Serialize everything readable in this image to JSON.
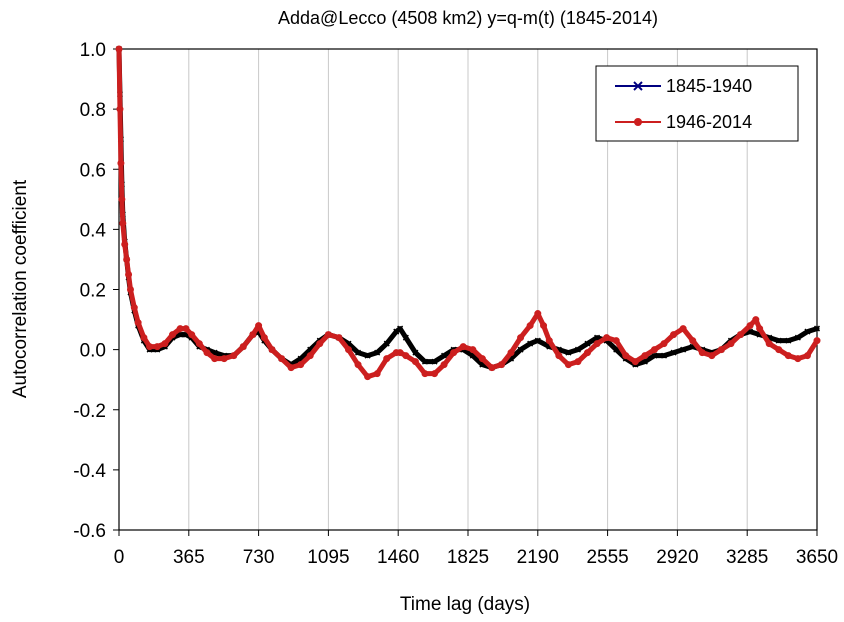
{
  "chart_data": {
    "type": "line",
    "title": "Adda@Lecco (4508 km2) y=q-m(t) (1845-2014)",
    "xlabel": "Time lag (days)",
    "ylabel": "Autocorrelation coefficient",
    "xlim": [
      0,
      3650
    ],
    "ylim": [
      -0.6,
      1.0
    ],
    "x_ticks": [
      0,
      365,
      730,
      1095,
      1460,
      1825,
      2190,
      2555,
      2920,
      3285,
      3650
    ],
    "y_ticks": [
      1.0,
      0.8,
      0.6,
      0.4,
      0.2,
      0.0,
      -0.2,
      -0.4,
      -0.6
    ],
    "x_tick_labels": [
      "0",
      "365",
      "730",
      "1095",
      "1460",
      "1825",
      "2190",
      "2555",
      "2920",
      "3285",
      "3650"
    ],
    "y_tick_labels": [
      "1.0",
      "0.8",
      "0.6",
      "0.4",
      "0.2",
      "0.0",
      "-0.2",
      "-0.4",
      "-0.6"
    ],
    "grid": {
      "vertical": true,
      "horizontal": false
    },
    "legend_position": "top-right",
    "series": [
      {
        "name": "1845-1940",
        "color": "#000000",
        "legend_color": "#000080",
        "marker": "x",
        "x": [
          0,
          5,
          10,
          15,
          20,
          30,
          40,
          50,
          60,
          80,
          100,
          130,
          160,
          200,
          240,
          280,
          320,
          350,
          380,
          420,
          460,
          500,
          550,
          600,
          650,
          700,
          730,
          760,
          800,
          850,
          900,
          950,
          1000,
          1050,
          1095,
          1150,
          1200,
          1250,
          1300,
          1350,
          1400,
          1450,
          1470,
          1500,
          1550,
          1600,
          1650,
          1700,
          1750,
          1800,
          1850,
          1900,
          1950,
          2000,
          2050,
          2100,
          2150,
          2190,
          2250,
          2300,
          2350,
          2400,
          2450,
          2500,
          2550,
          2600,
          2650,
          2700,
          2750,
          2800,
          2850,
          2900,
          2950,
          3000,
          3050,
          3100,
          3150,
          3200,
          3250,
          3300,
          3350,
          3400,
          3450,
          3500,
          3550,
          3600,
          3650
        ],
        "y": [
          1.0,
          0.85,
          0.7,
          0.55,
          0.45,
          0.36,
          0.3,
          0.24,
          0.19,
          0.13,
          0.08,
          0.03,
          0.0,
          0.0,
          0.01,
          0.04,
          0.05,
          0.05,
          0.04,
          0.01,
          0.0,
          -0.01,
          -0.02,
          -0.02,
          0.01,
          0.05,
          0.06,
          0.03,
          0.0,
          -0.03,
          -0.05,
          -0.03,
          0.0,
          0.03,
          0.05,
          0.04,
          0.02,
          -0.01,
          -0.02,
          -0.01,
          0.02,
          0.06,
          0.07,
          0.04,
          -0.01,
          -0.04,
          -0.04,
          -0.02,
          0.0,
          0.0,
          -0.02,
          -0.05,
          -0.06,
          -0.05,
          -0.03,
          0.0,
          0.02,
          0.03,
          0.01,
          0.0,
          -0.01,
          0.0,
          0.02,
          0.04,
          0.03,
          0.0,
          -0.03,
          -0.05,
          -0.04,
          -0.02,
          -0.02,
          -0.01,
          0.0,
          0.01,
          0.0,
          -0.01,
          0.0,
          0.03,
          0.05,
          0.06,
          0.05,
          0.04,
          0.03,
          0.03,
          0.04,
          0.06,
          0.07
        ]
      },
      {
        "name": "1946-2014",
        "color": "#cc1f1f",
        "legend_color": "#cc1f1f",
        "marker": "circle",
        "x": [
          0,
          5,
          10,
          15,
          20,
          30,
          40,
          50,
          60,
          80,
          100,
          130,
          160,
          200,
          240,
          280,
          320,
          350,
          380,
          420,
          460,
          500,
          550,
          600,
          650,
          700,
          730,
          760,
          800,
          850,
          900,
          950,
          1000,
          1050,
          1095,
          1150,
          1200,
          1250,
          1300,
          1350,
          1400,
          1450,
          1470,
          1500,
          1550,
          1600,
          1650,
          1700,
          1750,
          1800,
          1850,
          1900,
          1950,
          2000,
          2050,
          2100,
          2150,
          2190,
          2220,
          2250,
          2300,
          2350,
          2400,
          2450,
          2500,
          2550,
          2600,
          2650,
          2700,
          2750,
          2800,
          2850,
          2900,
          2950,
          3000,
          3050,
          3100,
          3150,
          3200,
          3250,
          3300,
          3330,
          3350,
          3400,
          3450,
          3500,
          3550,
          3600,
          3650
        ],
        "y": [
          1.0,
          0.8,
          0.62,
          0.5,
          0.42,
          0.35,
          0.3,
          0.25,
          0.2,
          0.14,
          0.09,
          0.04,
          0.01,
          0.01,
          0.02,
          0.05,
          0.07,
          0.07,
          0.05,
          0.02,
          -0.01,
          -0.03,
          -0.03,
          -0.02,
          0.01,
          0.05,
          0.08,
          0.04,
          0.0,
          -0.03,
          -0.06,
          -0.05,
          -0.02,
          0.02,
          0.05,
          0.04,
          0.0,
          -0.05,
          -0.09,
          -0.08,
          -0.03,
          -0.01,
          -0.01,
          -0.02,
          -0.04,
          -0.08,
          -0.08,
          -0.05,
          -0.01,
          0.01,
          0.0,
          -0.03,
          -0.06,
          -0.05,
          -0.01,
          0.04,
          0.08,
          0.12,
          0.08,
          0.03,
          -0.02,
          -0.05,
          -0.04,
          -0.01,
          0.02,
          0.04,
          0.03,
          -0.02,
          -0.04,
          -0.02,
          0.0,
          0.02,
          0.05,
          0.07,
          0.03,
          -0.01,
          -0.02,
          0.0,
          0.02,
          0.05,
          0.08,
          0.1,
          0.07,
          0.02,
          0.0,
          -0.02,
          -0.03,
          -0.02,
          0.03
        ]
      }
    ]
  }
}
